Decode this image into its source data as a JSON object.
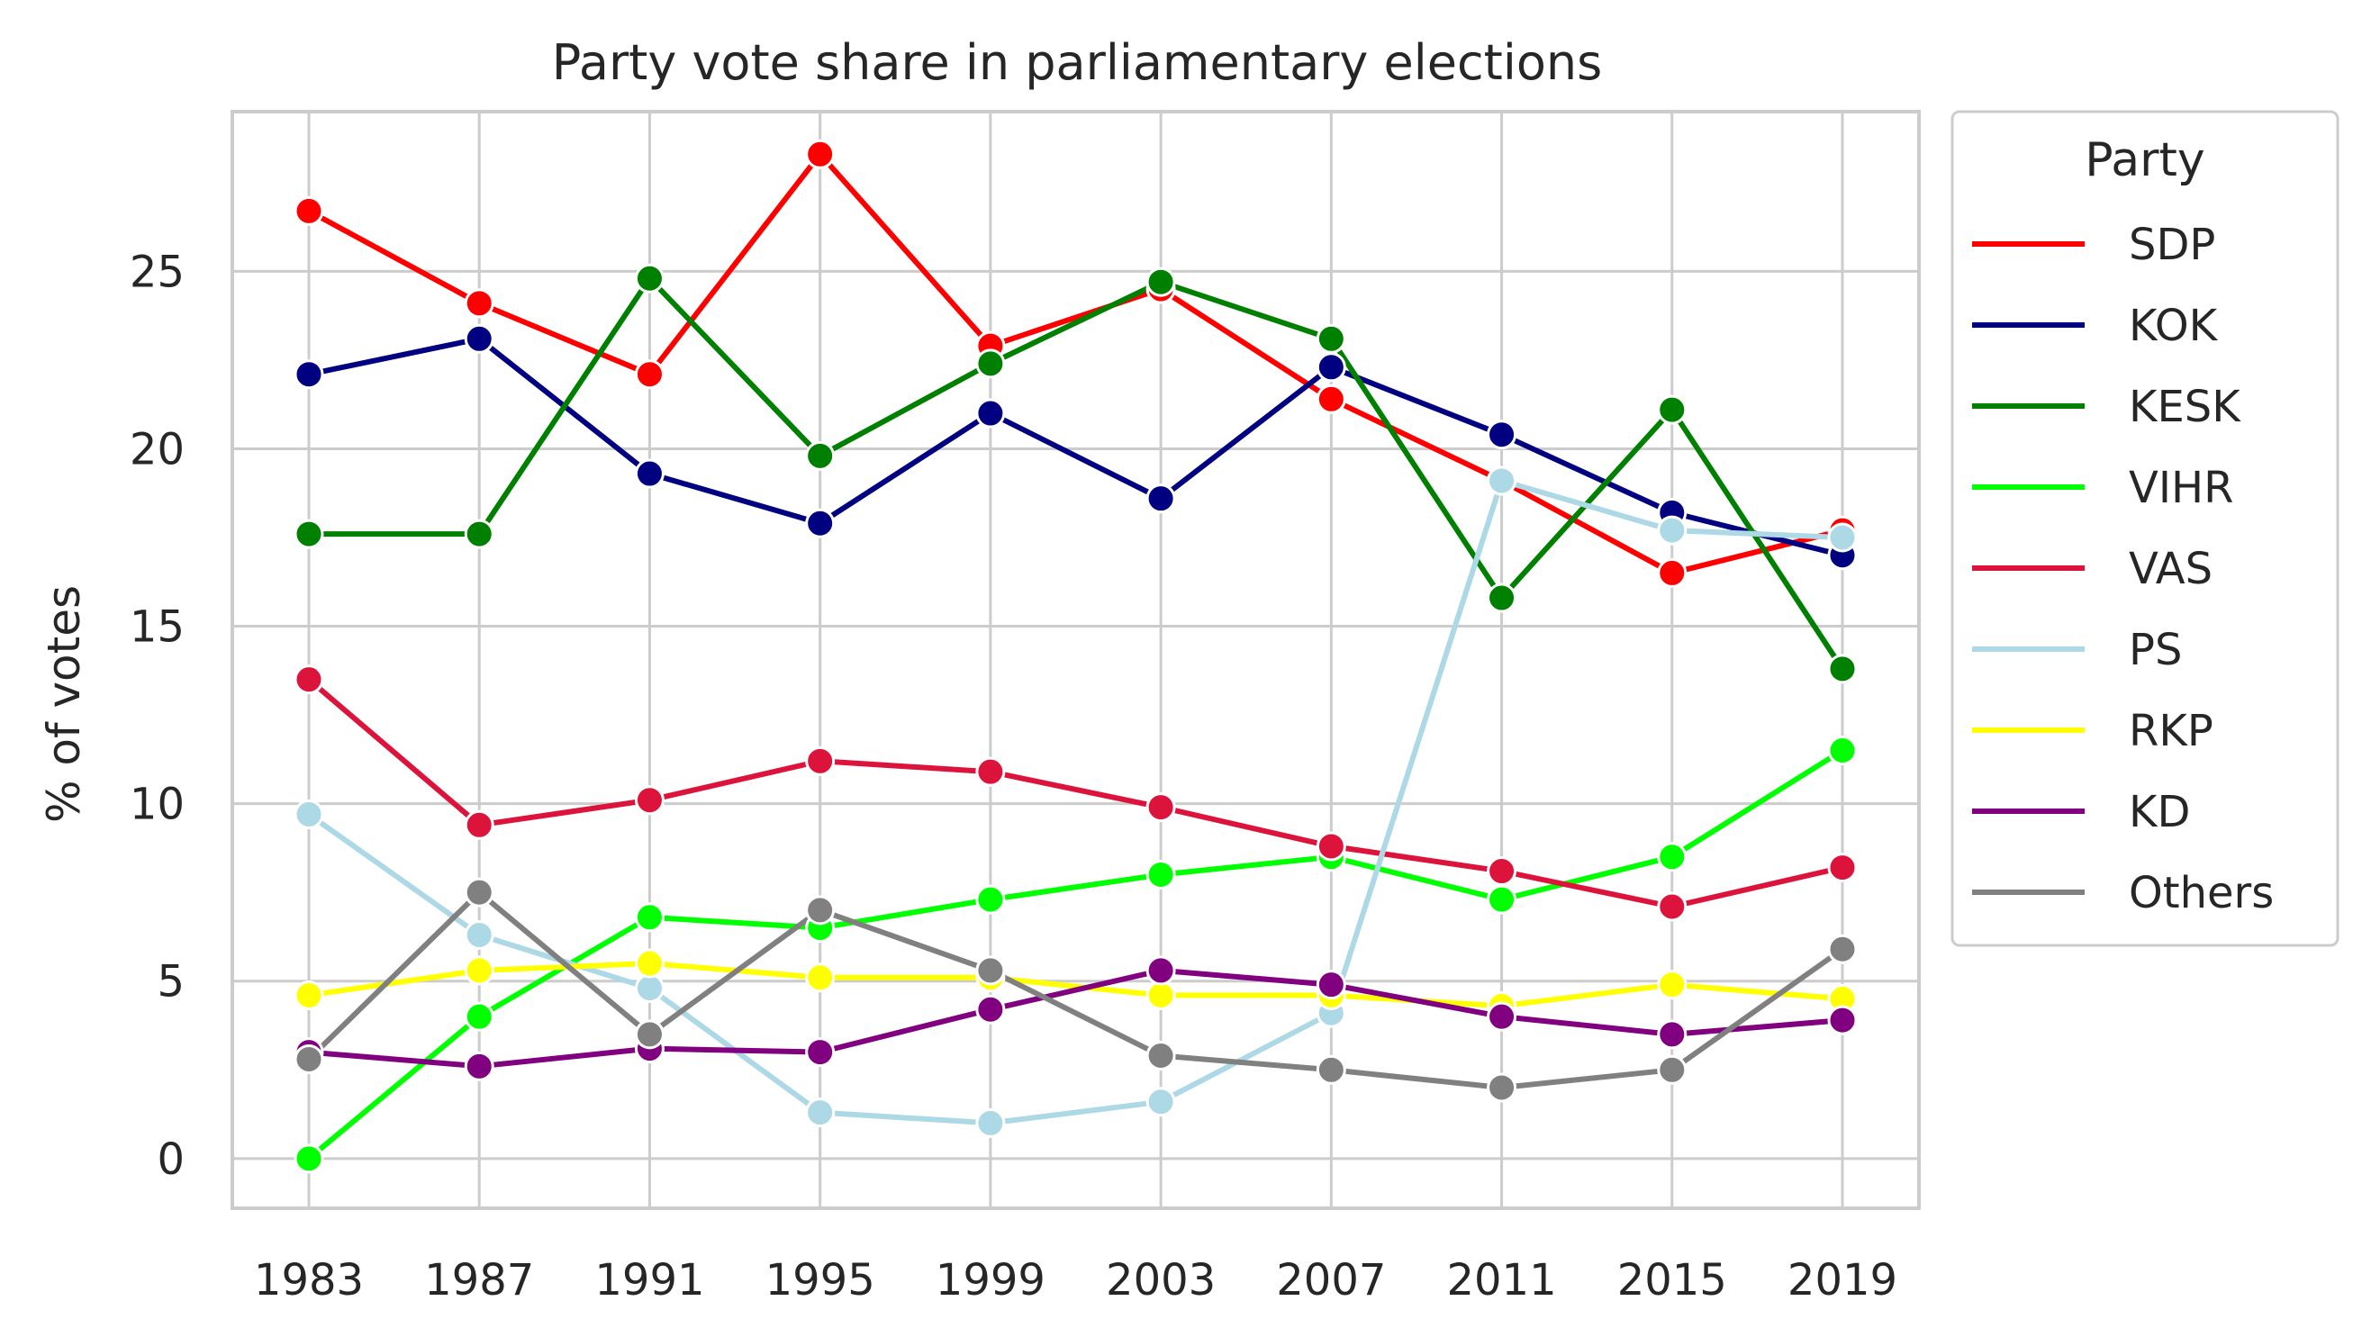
{
  "chart_data": {
    "type": "line",
    "title": "Party vote share in parliamentary elections",
    "xlabel": "",
    "ylabel": "% of votes",
    "x": [
      1983,
      1987,
      1991,
      1995,
      1999,
      2003,
      2007,
      2011,
      2015,
      2019
    ],
    "x_tick_labels": [
      "1983",
      "1987",
      "1991",
      "1995",
      "1999",
      "2003",
      "2007",
      "2011",
      "2015",
      "2019"
    ],
    "y_ticks": [
      0,
      5,
      10,
      15,
      20,
      25
    ],
    "y_tick_labels": [
      "0",
      "5",
      "10",
      "15",
      "20",
      "25"
    ],
    "ylim": [
      -1.4,
      29.5
    ],
    "grid": true,
    "legend_title": "Party",
    "legend_position": "outside-right-top",
    "series": [
      {
        "name": "SDP",
        "color": "#ff0000",
        "values": [
          26.7,
          24.1,
          22.1,
          28.3,
          22.9,
          24.5,
          21.4,
          19.1,
          16.5,
          17.7
        ]
      },
      {
        "name": "KOK",
        "color": "#000080",
        "values": [
          22.1,
          23.1,
          19.3,
          17.9,
          21.0,
          18.6,
          22.3,
          20.4,
          18.2,
          17.0
        ]
      },
      {
        "name": "KESK",
        "color": "#008000",
        "values": [
          17.6,
          17.6,
          24.8,
          19.8,
          22.4,
          24.7,
          23.1,
          15.8,
          21.1,
          13.8
        ]
      },
      {
        "name": "VIHR",
        "color": "#00ff00",
        "values": [
          0.0,
          4.0,
          6.8,
          6.5,
          7.3,
          8.0,
          8.5,
          7.3,
          8.5,
          11.5
        ]
      },
      {
        "name": "VAS",
        "color": "#dc143c",
        "values": [
          13.5,
          9.4,
          10.1,
          11.2,
          10.9,
          9.9,
          8.8,
          8.1,
          7.1,
          8.2
        ]
      },
      {
        "name": "PS",
        "color": "#add8e6",
        "values": [
          9.7,
          6.3,
          4.8,
          1.3,
          1.0,
          1.6,
          4.1,
          19.1,
          17.7,
          17.5
        ]
      },
      {
        "name": "RKP",
        "color": "#ffff00",
        "values": [
          4.6,
          5.3,
          5.5,
          5.1,
          5.1,
          4.6,
          4.6,
          4.3,
          4.9,
          4.5
        ]
      },
      {
        "name": "KD",
        "color": "#800080",
        "values": [
          3.0,
          2.6,
          3.1,
          3.0,
          4.2,
          5.3,
          4.9,
          4.0,
          3.5,
          3.9
        ]
      },
      {
        "name": "Others",
        "color": "#808080",
        "values": [
          2.8,
          7.5,
          3.5,
          7.0,
          5.3,
          2.9,
          2.5,
          2.0,
          2.5,
          5.9
        ]
      }
    ]
  }
}
